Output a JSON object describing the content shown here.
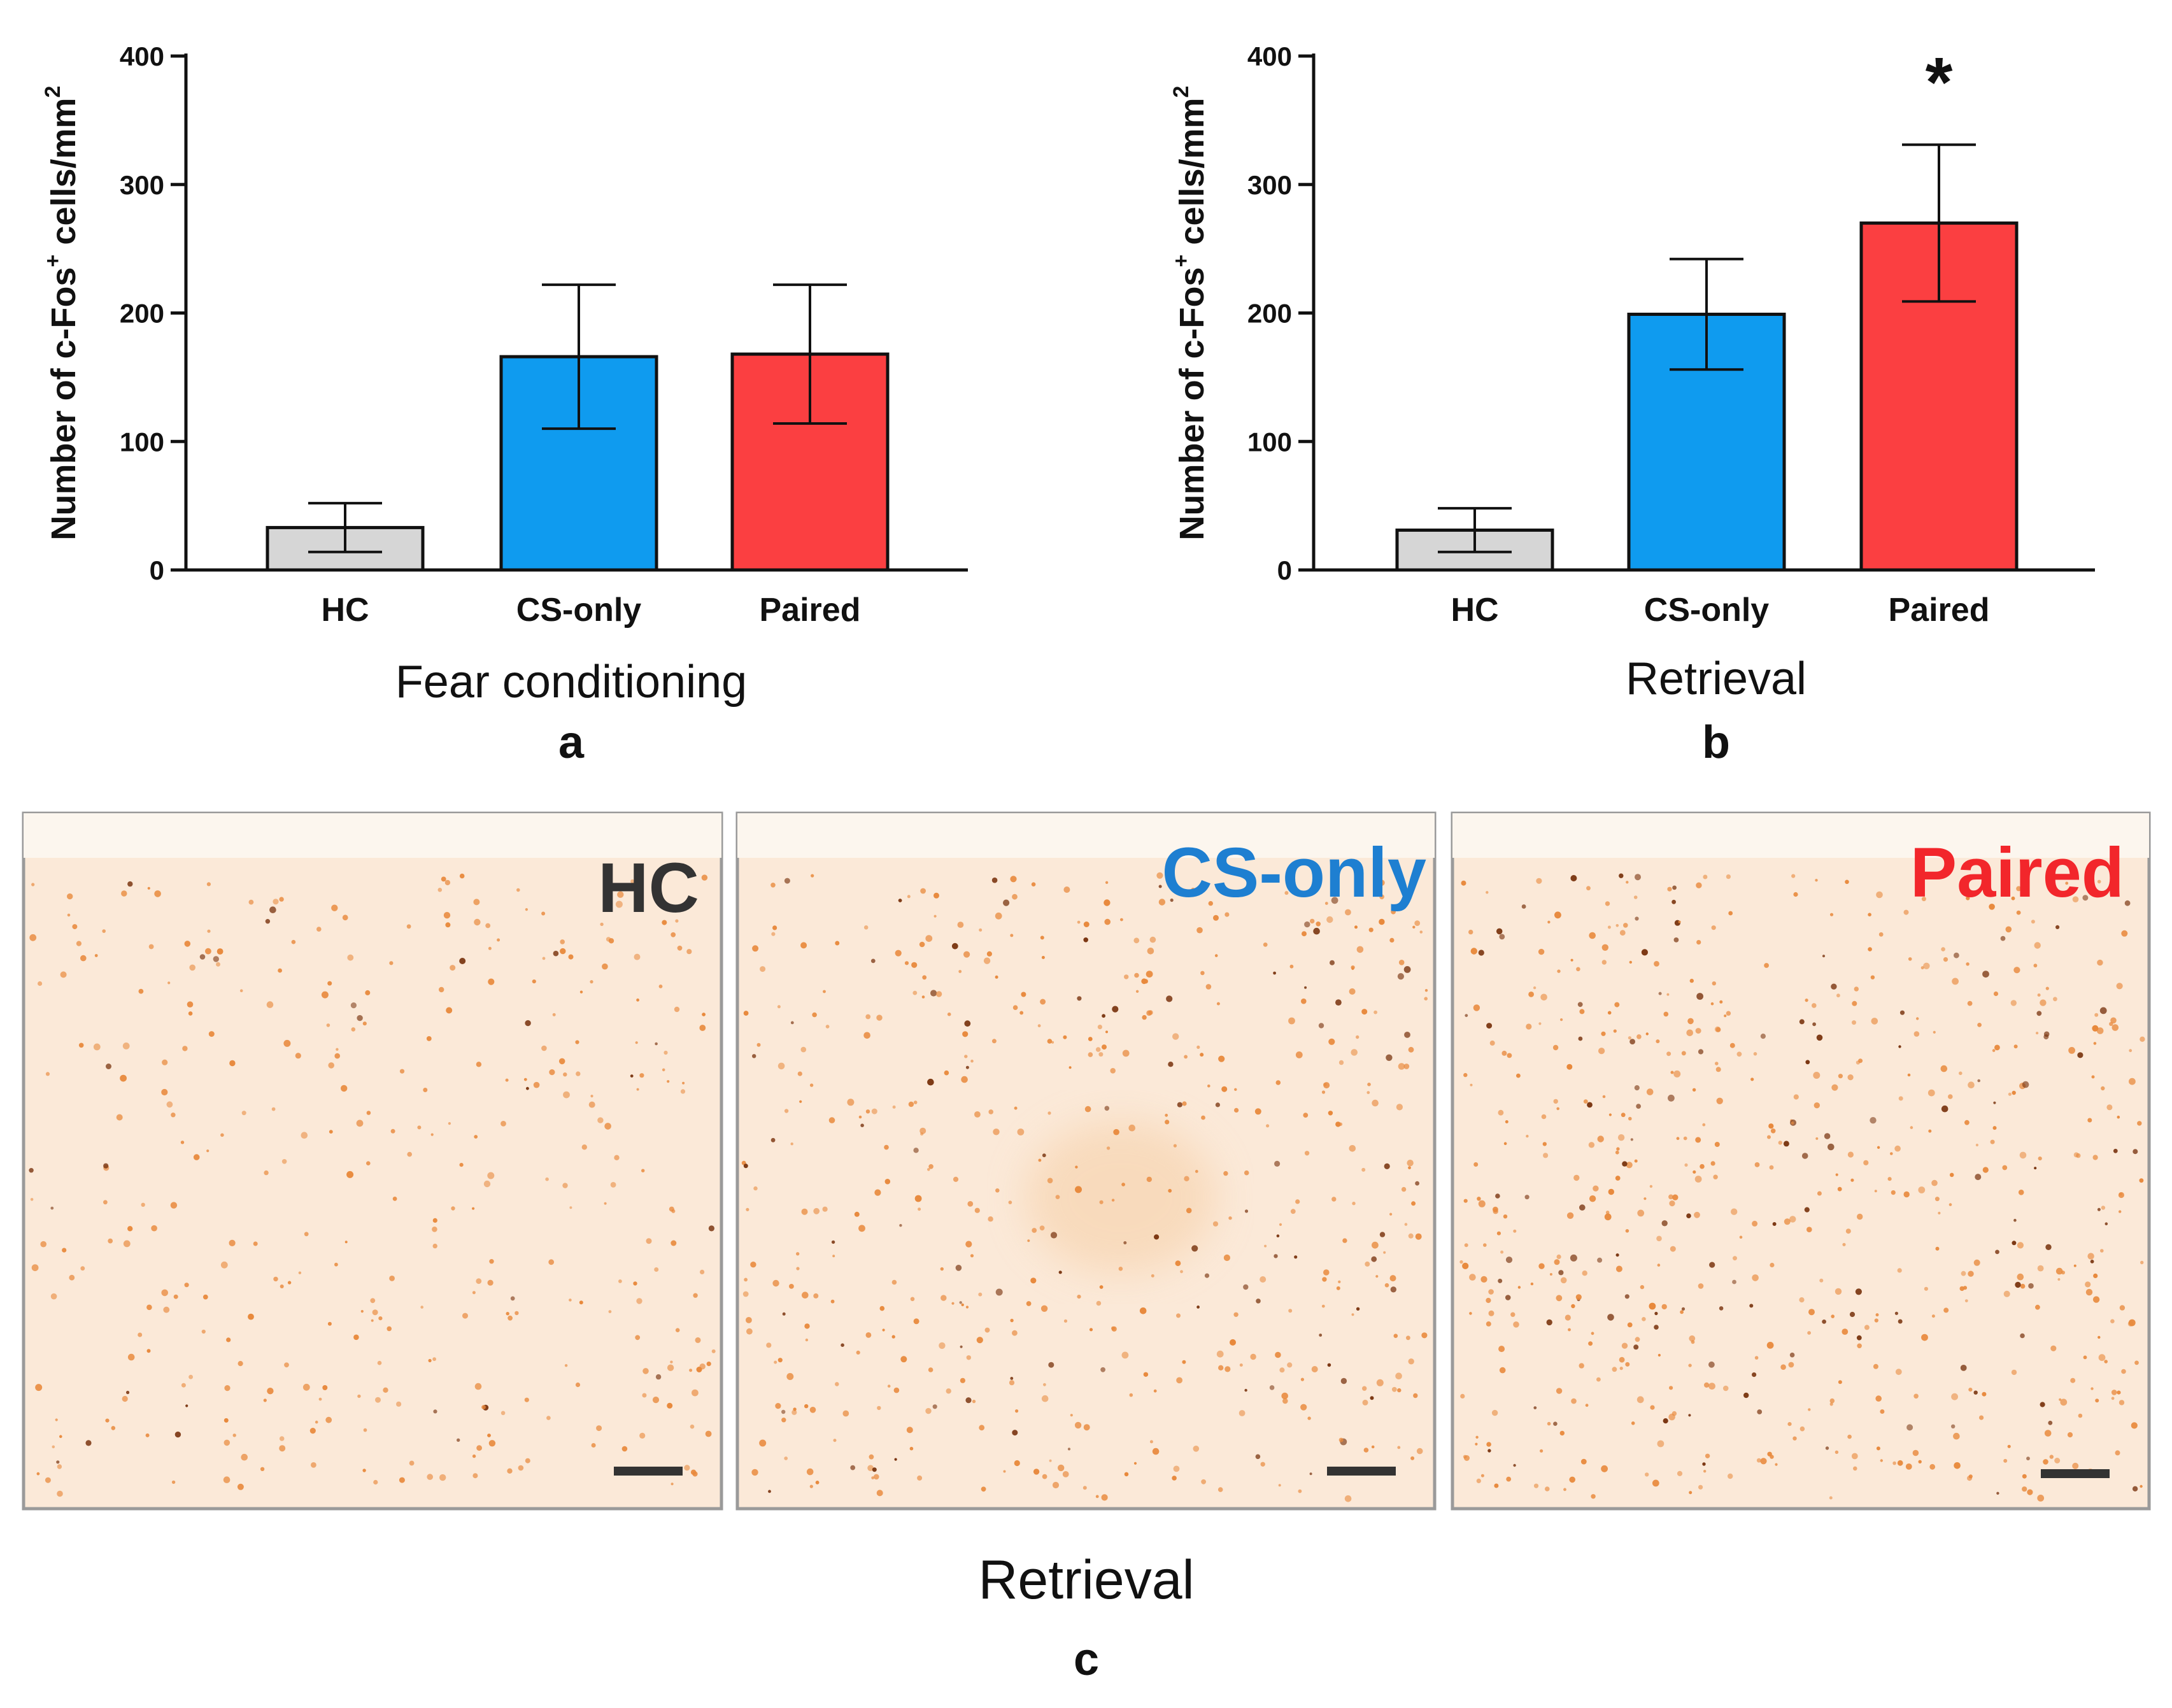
{
  "chart_data": [
    {
      "type": "bar",
      "panel": "a",
      "title": "Fear conditioning",
      "xlabel": "Fear conditioning",
      "ylabel": "Number of c-Fos",
      "ylabel_sup": "+",
      "ylabel_tail": " cells/mm",
      "ylabel_tail_sup": "2",
      "ylim": [
        0,
        400
      ],
      "yticks": [
        "0",
        "100",
        "200",
        "300",
        "400"
      ],
      "ytick_values": [
        0,
        100,
        200,
        300,
        400
      ],
      "categories": [
        "HC",
        "CS-only",
        "Paired"
      ],
      "values": [
        33,
        166,
        168
      ],
      "errors": [
        19,
        56,
        54
      ],
      "colors": [
        "#d6d6d6",
        "#0f9bef",
        "#fb3f41"
      ],
      "annotation": ""
    },
    {
      "type": "bar",
      "panel": "b",
      "title": "Retrieval",
      "xlabel": "Retrieval",
      "ylabel": "Number of c-Fos",
      "ylabel_sup": "+",
      "ylabel_tail": " cells/mm",
      "ylabel_tail_sup": "2",
      "ylim": [
        0,
        400
      ],
      "yticks": [
        "0",
        "100",
        "200",
        "300",
        "400"
      ],
      "ytick_values": [
        0,
        100,
        200,
        300,
        400
      ],
      "categories": [
        "HC",
        "CS-only",
        "Paired"
      ],
      "values": [
        31,
        199,
        270
      ],
      "errors": [
        17,
        43,
        61
      ],
      "colors": [
        "#d6d6d6",
        "#0f9bef",
        "#fb3f41"
      ],
      "annotation": "*"
    }
  ],
  "micrographs": {
    "panel": "c",
    "title": "Retrieval",
    "images": [
      {
        "label": "HC",
        "label_color": "#333333",
        "density": 360
      },
      {
        "label": "CS-only",
        "label_color": "#1e7fd1",
        "density": 520
      },
      {
        "label": "Paired",
        "label_color": "#f2262b",
        "density": 640
      }
    ]
  },
  "colors": {
    "stain_background": "#fbeadb",
    "cell_orange": "#e8893c",
    "cell_dark": "#7a3510",
    "axis": "#111111"
  }
}
